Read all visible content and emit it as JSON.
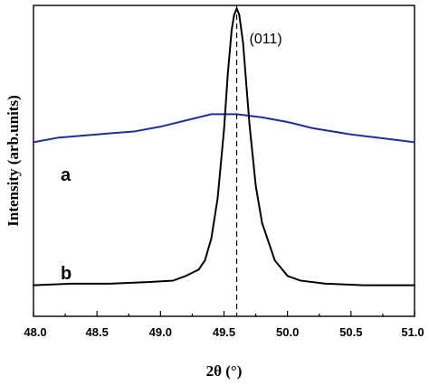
{
  "chart_data": {
    "type": "line",
    "title": "",
    "xlabel": "2θ (°)",
    "ylabel": "Intensity (arb.units)",
    "xlim": [
      48.0,
      51.0
    ],
    "x_ticks": [
      48.0,
      48.5,
      49.0,
      49.5,
      50.0,
      50.5,
      51.0
    ],
    "y_ticks_shown": false,
    "grid": false,
    "legend": "none",
    "series": [
      {
        "name": "a",
        "color": "#1f2fa0",
        "x": [
          48.0,
          48.2,
          48.5,
          48.8,
          49.0,
          49.2,
          49.4,
          49.6,
          49.8,
          50.0,
          50.2,
          50.5,
          50.8,
          51.0
        ],
        "y": [
          0.56,
          0.575,
          0.585,
          0.595,
          0.61,
          0.63,
          0.65,
          0.65,
          0.64,
          0.625,
          0.605,
          0.585,
          0.57,
          0.56
        ]
      },
      {
        "name": "b",
        "color": "#000000",
        "x": [
          48.0,
          48.3,
          48.6,
          48.9,
          49.1,
          49.2,
          49.3,
          49.35,
          49.4,
          49.45,
          49.5,
          49.53,
          49.56,
          49.58,
          49.6,
          49.62,
          49.65,
          49.7,
          49.75,
          49.8,
          49.9,
          50.0,
          50.1,
          50.3,
          50.6,
          51.0
        ],
        "y": [
          0.1,
          0.105,
          0.105,
          0.11,
          0.115,
          0.13,
          0.15,
          0.18,
          0.25,
          0.38,
          0.6,
          0.78,
          0.92,
          0.97,
          0.99,
          0.97,
          0.88,
          0.62,
          0.42,
          0.3,
          0.18,
          0.13,
          0.115,
          0.105,
          0.1,
          0.1
        ]
      }
    ],
    "annotations": [
      {
        "text": "(011)",
        "x": 49.6
      }
    ],
    "reference_line": {
      "x": 49.6,
      "style": "dashed"
    }
  }
}
